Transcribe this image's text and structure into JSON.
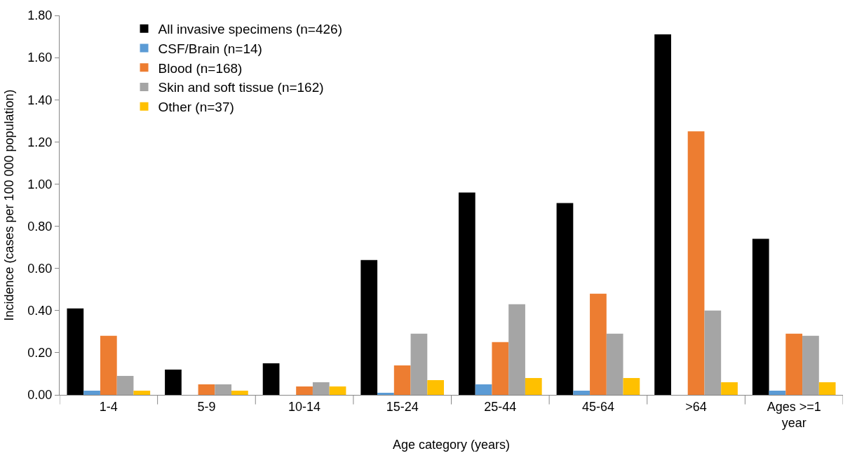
{
  "chart_data": {
    "type": "bar",
    "xlabel": "Age category (years)",
    "ylabel": "Incidence (cases per 100 000 population)",
    "categories": [
      "1-4",
      "5-9",
      "10-14",
      "15-24",
      "25-44",
      "45-64",
      ">64",
      "Ages >=1 year"
    ],
    "series": [
      {
        "name": "All invasive specimens (n=426)",
        "color": "#000000",
        "values": [
          0.41,
          0.12,
          0.15,
          0.64,
          0.96,
          0.91,
          1.71,
          0.74
        ]
      },
      {
        "name": "CSF/Brain (n=14)",
        "color": "#5b9bd5",
        "values": [
          0.02,
          0,
          0,
          0.01,
          0.05,
          0.02,
          0,
          0.02
        ]
      },
      {
        "name": "Blood (n=168)",
        "color": "#ed7d31",
        "values": [
          0.28,
          0.05,
          0.04,
          0.14,
          0.25,
          0.48,
          1.25,
          0.29
        ]
      },
      {
        "name": "Skin and soft tissue (n=162)",
        "color": "#a5a5a5",
        "values": [
          0.09,
          0.05,
          0.06,
          0.29,
          0.43,
          0.29,
          0.4,
          0.28
        ]
      },
      {
        "name": "Other (n=37)",
        "color": "#ffc000",
        "values": [
          0.02,
          0.02,
          0.04,
          0.07,
          0.08,
          0.08,
          0.06,
          0.06
        ]
      }
    ],
    "ylim": [
      0,
      1.8
    ],
    "yticks": [
      {
        "value": 0,
        "label": "0.00"
      },
      {
        "value": 0.2,
        "label": "0.20"
      },
      {
        "value": 0.4,
        "label": "0.40"
      },
      {
        "value": 0.6,
        "label": "0.60"
      },
      {
        "value": 0.8,
        "label": "0.80"
      },
      {
        "value": 1.0,
        "label": "1.00"
      },
      {
        "value": 1.2,
        "label": "1.20"
      },
      {
        "value": 1.4,
        "label": "1.40"
      },
      {
        "value": 1.6,
        "label": "1.60"
      },
      {
        "value": 1.8,
        "label": "1.80"
      }
    ],
    "grid": false,
    "legend": "top left"
  }
}
